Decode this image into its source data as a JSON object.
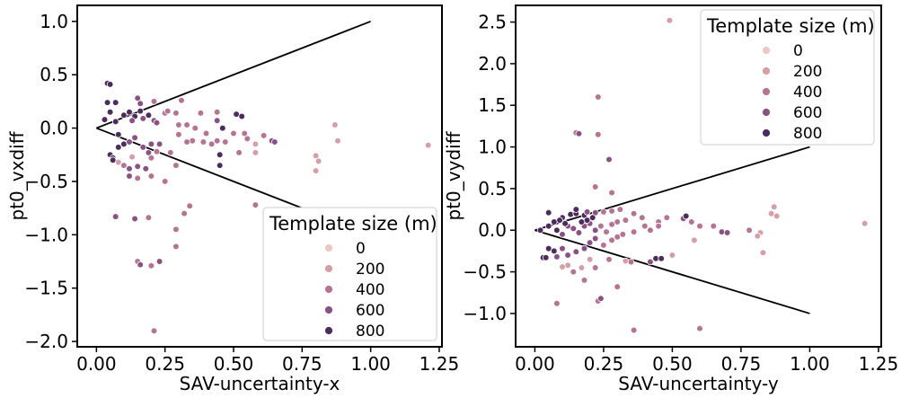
{
  "chart_data": [
    {
      "type": "scatter",
      "xlabel": "SAV-uncertainty-x",
      "ylabel": "pt0_vxdiff",
      "xlim": [
        -0.07,
        1.26
      ],
      "ylim": [
        -2.05,
        1.15
      ],
      "xticks": [
        0.0,
        0.25,
        0.5,
        0.75,
        1.0,
        1.25
      ],
      "xtick_labels": [
        "0.00",
        "0.25",
        "0.50",
        "0.75",
        "1.00",
        "1.25"
      ],
      "yticks": [
        -2.0,
        -1.5,
        -1.0,
        -0.5,
        0.0,
        0.5,
        1.0
      ],
      "ytick_labels": [
        "−2.0",
        "−1.5",
        "−1.0",
        "−0.5",
        "0.0",
        "0.5",
        "1.0"
      ],
      "grid": false,
      "legend": {
        "title": "Template size (m)",
        "placement": "lower-right",
        "entries": [
          "0",
          "200",
          "400",
          "600",
          "800"
        ],
        "colors": [
          "#ecc8c3",
          "#d49fa8",
          "#b47593",
          "#8a5283",
          "#4c2c5c"
        ]
      },
      "reference_lines": [
        {
          "x": [
            0.0,
            1.0
          ],
          "y": [
            0.0,
            1.0
          ]
        },
        {
          "x": [
            0.0,
            1.0
          ],
          "y": [
            0.0,
            -1.0
          ]
        }
      ],
      "points": [
        [
          0.04,
          0.42,
          800
        ],
        [
          0.05,
          0.41,
          700
        ],
        [
          0.04,
          0.24,
          800
        ],
        [
          0.07,
          0.24,
          700
        ],
        [
          0.05,
          0.15,
          800
        ],
        [
          0.03,
          0.08,
          800
        ],
        [
          0.07,
          0.06,
          700
        ],
        [
          0.1,
          0.12,
          800
        ],
        [
          0.12,
          0.15,
          800
        ],
        [
          0.14,
          0.11,
          700
        ],
        [
          0.16,
          0.16,
          800
        ],
        [
          0.19,
          0.12,
          700
        ],
        [
          0.17,
          0.09,
          600
        ],
        [
          0.13,
          0.07,
          500
        ],
        [
          0.21,
          0.07,
          500
        ],
        [
          0.22,
          0.05,
          500
        ],
        [
          0.25,
          0.14,
          400
        ],
        [
          0.29,
          0.14,
          400
        ],
        [
          0.3,
          0.03,
          300
        ],
        [
          0.33,
          0.03,
          300
        ],
        [
          0.36,
          0.0,
          400
        ],
        [
          0.4,
          -0.05,
          400
        ],
        [
          0.44,
          0.07,
          500
        ],
        [
          0.51,
          0.13,
          800
        ],
        [
          0.53,
          0.11,
          700
        ],
        [
          0.46,
          0.0,
          800
        ],
        [
          0.15,
          0.28,
          500
        ],
        [
          0.16,
          0.23,
          500
        ],
        [
          0.21,
          0.25,
          400
        ],
        [
          0.26,
          0.16,
          400
        ],
        [
          0.31,
          0.26,
          400
        ],
        [
          0.38,
          0.14,
          400
        ],
        [
          0.44,
          0.15,
          300
        ],
        [
          0.5,
          -0.05,
          400
        ],
        [
          0.55,
          -0.1,
          300
        ],
        [
          0.58,
          -0.15,
          200
        ],
        [
          0.61,
          -0.07,
          300
        ],
        [
          0.64,
          -0.12,
          500
        ],
        [
          0.65,
          -0.13,
          500
        ],
        [
          0.54,
          -0.05,
          300
        ],
        [
          0.47,
          -0.13,
          300
        ],
        [
          0.52,
          -0.23,
          300
        ],
        [
          0.35,
          -0.12,
          400
        ],
        [
          0.39,
          -0.13,
          300
        ],
        [
          0.42,
          -0.15,
          300
        ],
        [
          0.44,
          -0.12,
          300
        ],
        [
          0.45,
          -0.25,
          800
        ],
        [
          0.45,
          -0.35,
          800
        ],
        [
          0.58,
          -0.23,
          200
        ],
        [
          0.08,
          -0.06,
          700
        ],
        [
          0.1,
          -0.15,
          700
        ],
        [
          0.12,
          -0.13,
          600
        ],
        [
          0.14,
          -0.09,
          600
        ],
        [
          0.17,
          -0.18,
          500
        ],
        [
          0.19,
          -0.23,
          500
        ],
        [
          0.2,
          -0.15,
          500
        ],
        [
          0.23,
          -0.15,
          600
        ],
        [
          0.27,
          -0.23,
          400
        ],
        [
          0.29,
          -0.35,
          300
        ],
        [
          0.33,
          -0.13,
          400
        ],
        [
          0.3,
          -0.06,
          300
        ],
        [
          0.05,
          -0.25,
          800
        ],
        [
          0.06,
          -0.28,
          800
        ],
        [
          0.08,
          -0.18,
          700
        ],
        [
          0.1,
          -0.35,
          400
        ],
        [
          0.12,
          -0.38,
          500
        ],
        [
          0.15,
          -0.36,
          500
        ],
        [
          0.18,
          -0.38,
          500
        ],
        [
          0.2,
          -0.28,
          400
        ],
        [
          0.12,
          -0.45,
          500
        ],
        [
          0.15,
          -0.47,
          400
        ],
        [
          0.2,
          -0.45,
          400
        ],
        [
          0.25,
          -0.5,
          400
        ],
        [
          0.32,
          -0.8,
          400
        ],
        [
          0.34,
          -0.73,
          400
        ],
        [
          0.19,
          -0.84,
          400
        ],
        [
          0.14,
          -0.85,
          500
        ],
        [
          0.07,
          -0.83,
          500
        ],
        [
          0.29,
          -0.95,
          400
        ],
        [
          0.29,
          -1.11,
          400
        ],
        [
          0.15,
          -1.25,
          400
        ],
        [
          0.16,
          -1.28,
          500
        ],
        [
          0.2,
          -1.29,
          400
        ],
        [
          0.23,
          -1.25,
          500
        ],
        [
          0.21,
          -1.9,
          400
        ],
        [
          0.58,
          -0.72,
          400
        ],
        [
          0.87,
          0.03,
          100
        ],
        [
          0.88,
          -0.12,
          100
        ],
        [
          0.8,
          -0.26,
          100
        ],
        [
          0.81,
          -0.31,
          100
        ],
        [
          0.8,
          -0.4,
          100
        ],
        [
          1.21,
          -0.16,
          100
        ],
        [
          0.06,
          -0.3,
          700
        ],
        [
          0.22,
          -0.22,
          300
        ],
        [
          0.08,
          -0.32,
          100
        ],
        [
          0.13,
          -0.27,
          100
        ]
      ]
    },
    {
      "type": "scatter",
      "xlabel": "SAV-uncertainty-y",
      "ylabel": "pt0_vydiff",
      "xlim": [
        -0.07,
        1.26
      ],
      "ylim": [
        -1.4,
        2.7
      ],
      "xticks": [
        0.0,
        0.25,
        0.5,
        0.75,
        1.0,
        1.25
      ],
      "xtick_labels": [
        "0.00",
        "0.25",
        "0.50",
        "0.75",
        "1.00",
        "1.25"
      ],
      "yticks": [
        -1.0,
        -0.5,
        0.0,
        0.5,
        1.0,
        1.5,
        2.0,
        2.5
      ],
      "ytick_labels": [
        "−1.0",
        "−0.5",
        "0.0",
        "0.5",
        "1.0",
        "1.5",
        "2.0",
        "2.5"
      ],
      "grid": false,
      "legend": {
        "title": "Template size (m)",
        "placement": "upper-right",
        "entries": [
          "0",
          "200",
          "400",
          "600",
          "800"
        ],
        "colors": [
          "#ecc8c3",
          "#d49fa8",
          "#b47593",
          "#8a5283",
          "#4c2c5c"
        ]
      },
      "reference_lines": [
        {
          "x": [
            0.0,
            1.0
          ],
          "y": [
            0.0,
            1.0
          ]
        },
        {
          "x": [
            0.0,
            1.0
          ],
          "y": [
            0.0,
            -1.0
          ]
        }
      ],
      "points": [
        [
          0.49,
          2.52,
          100
        ],
        [
          0.23,
          1.6,
          400
        ],
        [
          0.15,
          1.17,
          400
        ],
        [
          0.16,
          1.16,
          500
        ],
        [
          0.23,
          1.15,
          400
        ],
        [
          0.27,
          0.85,
          500
        ],
        [
          0.22,
          0.52,
          300
        ],
        [
          0.28,
          0.45,
          300
        ],
        [
          0.05,
          0.22,
          800
        ],
        [
          0.05,
          0.21,
          700
        ],
        [
          0.1,
          0.15,
          800
        ],
        [
          0.13,
          0.19,
          800
        ],
        [
          0.15,
          0.2,
          700
        ],
        [
          0.18,
          0.18,
          800
        ],
        [
          0.19,
          0.22,
          600
        ],
        [
          0.22,
          0.21,
          600
        ],
        [
          0.25,
          0.22,
          400
        ],
        [
          0.28,
          0.23,
          400
        ],
        [
          0.31,
          0.25,
          300
        ],
        [
          0.36,
          0.2,
          400
        ],
        [
          0.39,
          0.15,
          300
        ],
        [
          0.45,
          0.1,
          300
        ],
        [
          0.48,
          0.15,
          400
        ],
        [
          0.54,
          0.14,
          600
        ],
        [
          0.55,
          0.17,
          700
        ],
        [
          0.57,
          0.1,
          400
        ],
        [
          0.6,
          0.05,
          300
        ],
        [
          0.65,
          0.05,
          400
        ],
        [
          0.68,
          -0.02,
          500
        ],
        [
          0.7,
          -0.03,
          500
        ],
        [
          0.78,
          0.0,
          300
        ],
        [
          0.82,
          -0.03,
          200
        ],
        [
          0.86,
          0.2,
          100
        ],
        [
          0.87,
          0.28,
          100
        ],
        [
          0.88,
          0.17,
          100
        ],
        [
          0.81,
          -0.07,
          100
        ],
        [
          0.83,
          -0.27,
          100
        ],
        [
          1.2,
          0.08,
          100
        ],
        [
          0.6,
          -1.18,
          400
        ],
        [
          0.36,
          -1.2,
          400
        ],
        [
          0.23,
          -0.85,
          400
        ],
        [
          0.24,
          -0.82,
          500
        ],
        [
          0.3,
          -0.68,
          400
        ],
        [
          0.08,
          -0.88,
          400
        ],
        [
          0.14,
          -0.5,
          300
        ],
        [
          0.18,
          -0.6,
          400
        ],
        [
          0.22,
          -0.45,
          400
        ],
        [
          0.27,
          -0.35,
          300
        ],
        [
          0.33,
          -0.37,
          200
        ],
        [
          0.35,
          -0.38,
          300
        ],
        [
          0.42,
          -0.38,
          500
        ],
        [
          0.44,
          -0.34,
          800
        ],
        [
          0.46,
          -0.34,
          800
        ],
        [
          0.5,
          -0.3,
          200
        ],
        [
          0.58,
          -0.12,
          200
        ],
        [
          0.12,
          -0.42,
          100
        ],
        [
          0.1,
          -0.44,
          100
        ],
        [
          0.17,
          -0.45,
          100
        ],
        [
          0.2,
          -0.35,
          200
        ],
        [
          0.03,
          -0.33,
          800
        ],
        [
          0.04,
          -0.33,
          800
        ],
        [
          0.05,
          -0.22,
          800
        ],
        [
          0.07,
          -0.25,
          700
        ],
        [
          0.08,
          -0.32,
          600
        ],
        [
          0.1,
          -0.22,
          500
        ],
        [
          0.12,
          -0.3,
          600
        ],
        [
          0.15,
          -0.26,
          500
        ],
        [
          0.18,
          -0.22,
          500
        ],
        [
          0.2,
          -0.15,
          500
        ],
        [
          0.22,
          -0.1,
          500
        ],
        [
          0.25,
          -0.18,
          400
        ],
        [
          0.28,
          -0.12,
          400
        ],
        [
          0.3,
          -0.08,
          300
        ],
        [
          0.32,
          -0.05,
          400
        ],
        [
          0.02,
          0.0,
          800
        ],
        [
          0.05,
          0.05,
          700
        ],
        [
          0.08,
          0.0,
          700
        ],
        [
          0.1,
          -0.05,
          600
        ],
        [
          0.12,
          0.05,
          600
        ],
        [
          0.14,
          0.02,
          500
        ],
        [
          0.16,
          -0.03,
          500
        ],
        [
          0.18,
          0.05,
          500
        ],
        [
          0.2,
          0.08,
          600
        ],
        [
          0.22,
          0.0,
          500
        ],
        [
          0.24,
          0.05,
          400
        ],
        [
          0.26,
          -0.02,
          400
        ],
        [
          0.28,
          0.07,
          400
        ],
        [
          0.3,
          0.1,
          300
        ],
        [
          0.33,
          0.12,
          400
        ],
        [
          0.36,
          -0.02,
          400
        ],
        [
          0.4,
          0.05,
          300
        ],
        [
          0.42,
          0.0,
          300
        ],
        [
          0.45,
          0.05,
          400
        ],
        [
          0.15,
          0.25,
          700
        ],
        [
          0.09,
          0.12,
          800
        ],
        [
          0.11,
          0.08,
          800
        ],
        [
          0.07,
          0.1,
          800
        ],
        [
          0.19,
          0.12,
          800
        ],
        [
          0.21,
          0.15,
          700
        ],
        [
          0.17,
          0.1,
          700
        ]
      ]
    }
  ]
}
